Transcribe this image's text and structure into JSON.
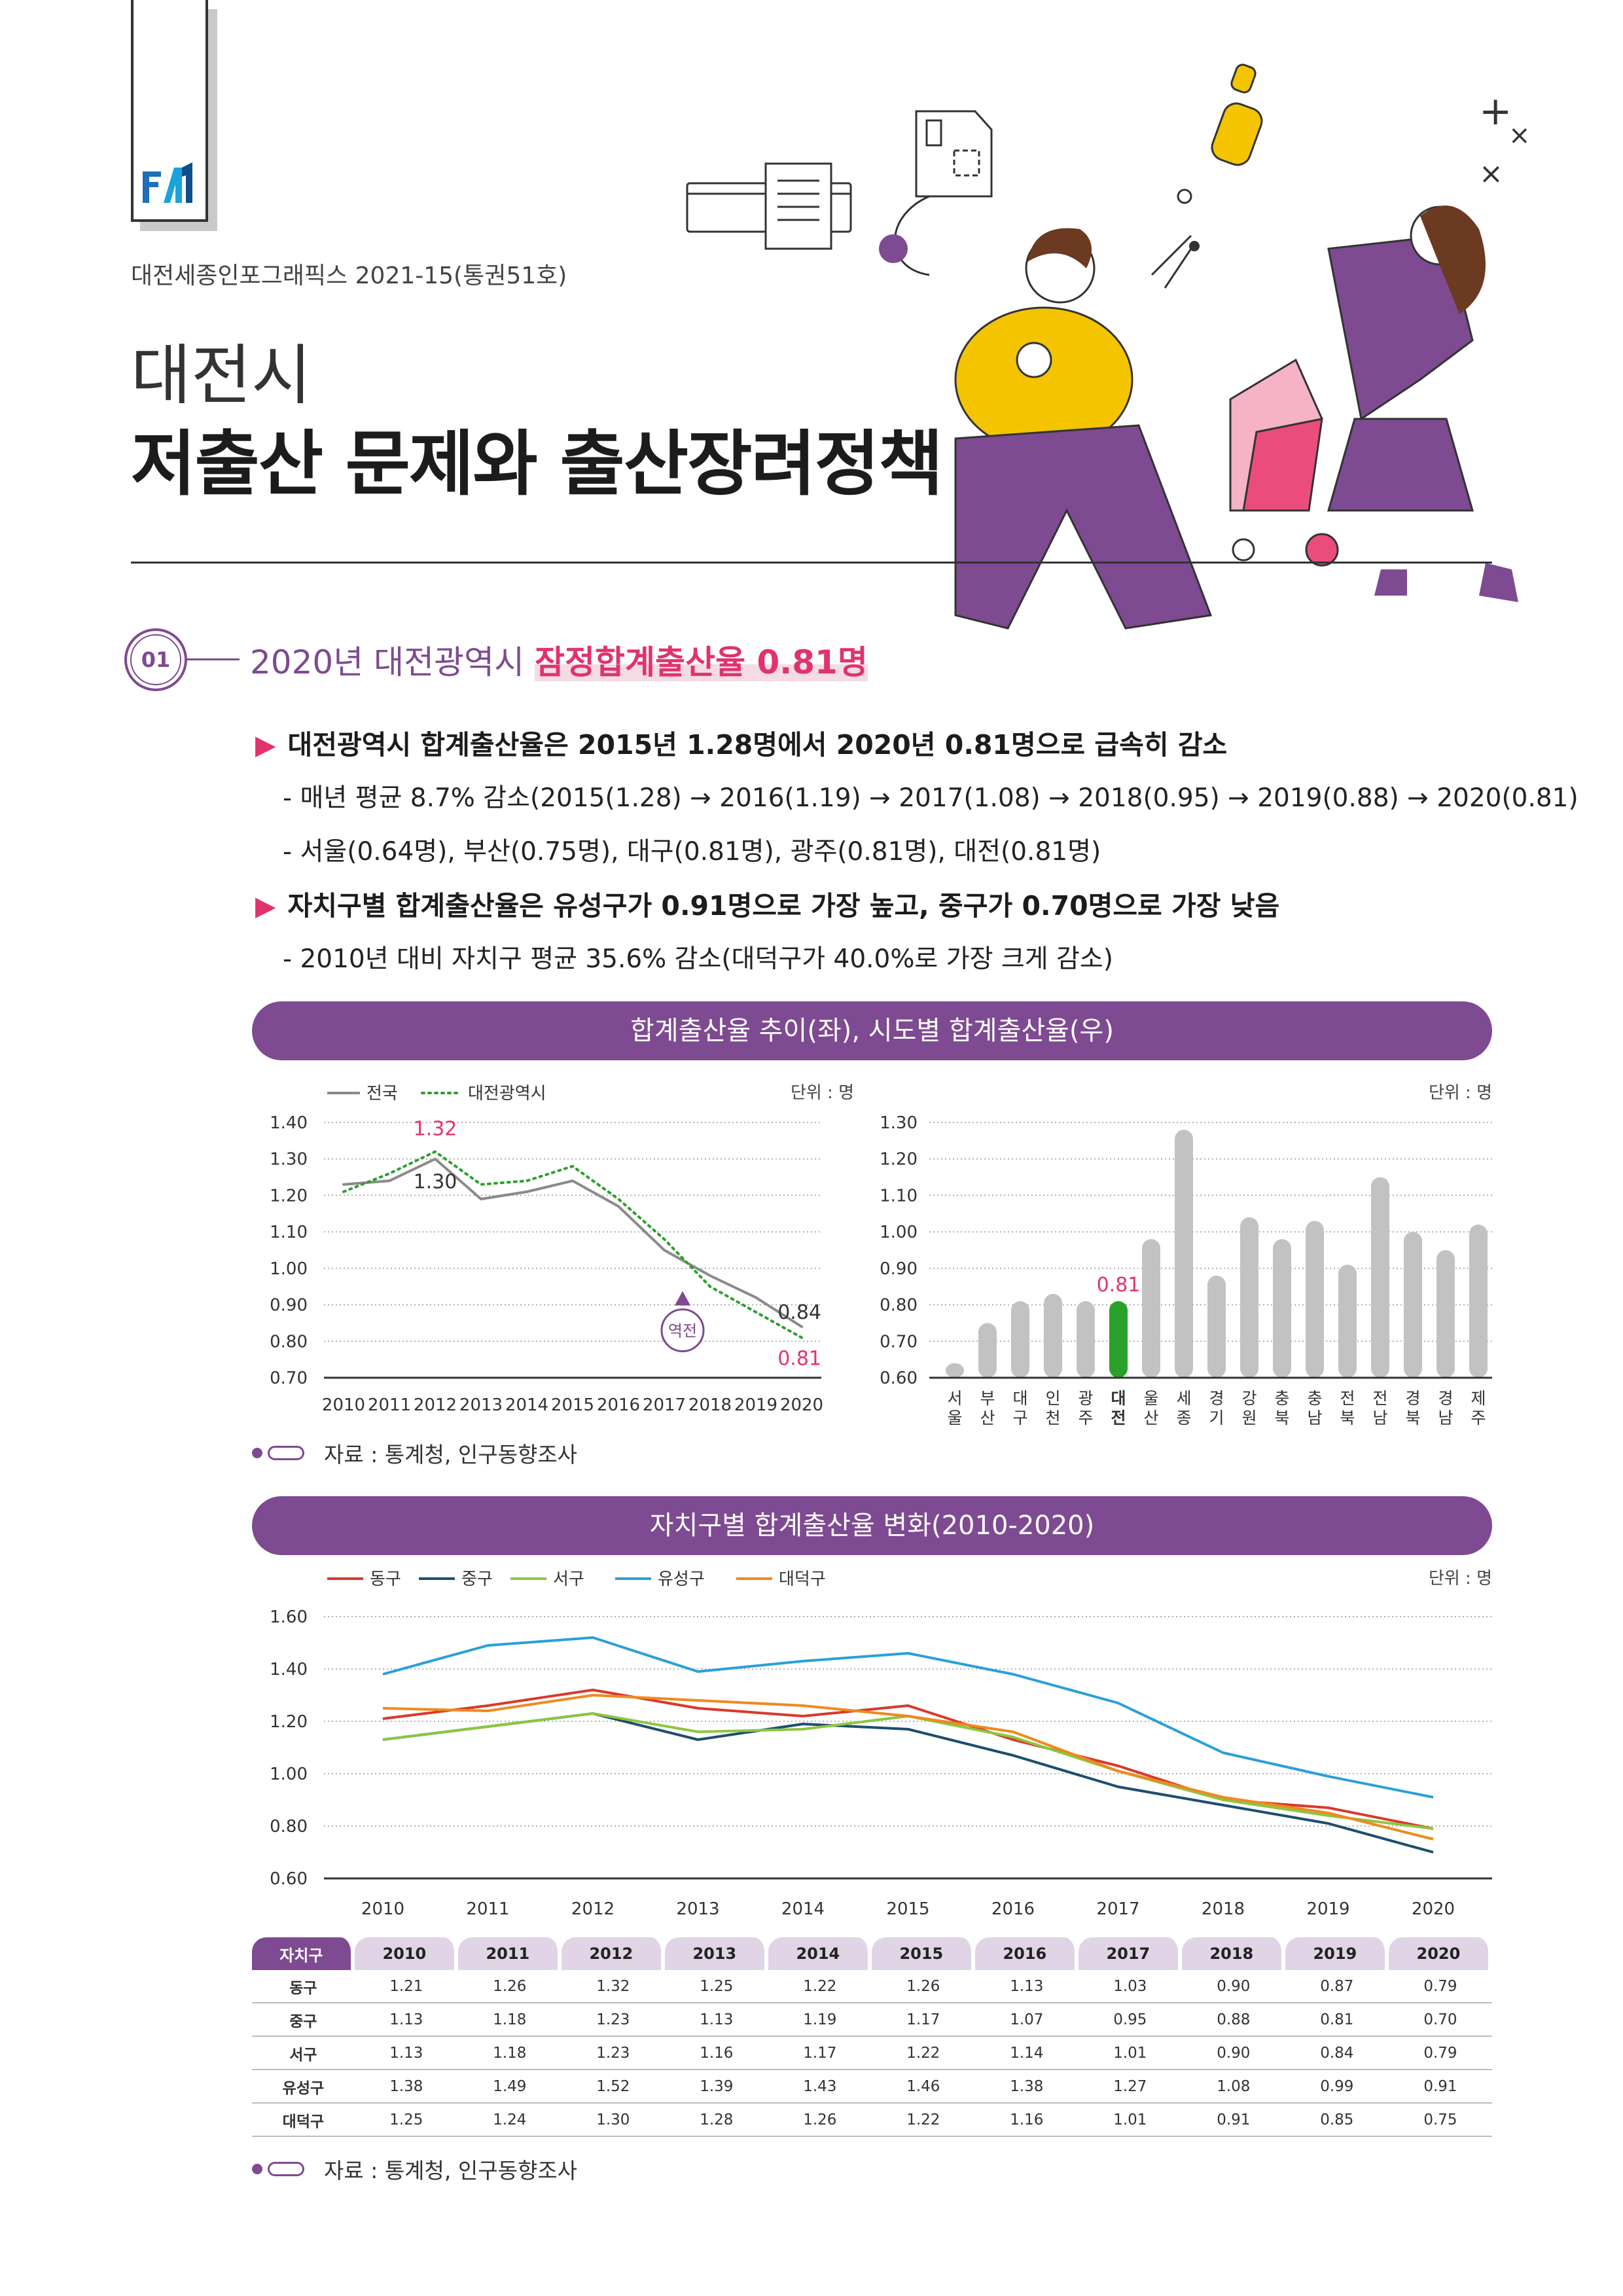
{
  "header": {
    "publication": "대전세종인포그래픽스 2021-15(통권51호)",
    "title_line1": "대전시",
    "title_line2": "저출산 문제와 출산장려정책"
  },
  "section": {
    "number": "01",
    "title_plain": "2020년 대전광역시 ",
    "title_highlight": "잠정합계출산율 0.81명"
  },
  "bullets": [
    {
      "text": "대전광역시 합계출산율은 2015년 1.28명에서 2020년 0.81명으로 급속히 감소",
      "subs": [
        "- 매년 평균 8.7% 감소(2015(1.28) → 2016(1.19) → 2017(1.08) → 2018(0.95) → 2019(0.88) → 2020(0.81)",
        "- 서울(0.64명), 부산(0.75명), 대구(0.81명), 광주(0.81명), 대전(0.81명)"
      ]
    },
    {
      "text": "자치구별 합계출산율은 유성구가 0.91명으로 가장 높고, 중구가 0.70명으로 가장 낮음",
      "subs": [
        "- 2010년 대비 자치구 평균 35.6% 감소(대덕구가 40.0%로 가장 크게 감소)"
      ]
    }
  ],
  "band1": "합계출산율 추이(좌), 시도별 합계출산율(우)",
  "band2": "자치구별 합계출산율 변화(2010-2020)",
  "source1": "자료 : 통계청, 인구동향조사",
  "source2": "자료 : 통계청, 인구동향조사",
  "colors": {
    "purple": "#7e4a91",
    "pink": "#e0336e",
    "national": "#8a8a8a",
    "daejeon_line": "#2aa12a",
    "bar": "#c2c2c2",
    "bar_highlight": "#2aa12a",
    "donggu": "#d9392b",
    "junggu": "#1d4e6e",
    "seogu": "#8cc63f",
    "yuseonggu": "#2aa0d8",
    "daedeokgu": "#ee8a1f"
  },
  "chart_data": [
    {
      "type": "line",
      "title": "합계출산율 추이",
      "unit": "단위 : 명",
      "x": [
        "2010",
        "2011",
        "2012",
        "2013",
        "2014",
        "2015",
        "2016",
        "2017",
        "2018",
        "2019",
        "2020"
      ],
      "ylim": [
        0.7,
        1.4
      ],
      "yticks": [
        "1.40",
        "1.30",
        "1.20",
        "1.10",
        "1.00",
        "0.90",
        "0.80",
        "0.70"
      ],
      "series": [
        {
          "name": "전국",
          "values": [
            1.23,
            1.24,
            1.3,
            1.19,
            1.21,
            1.24,
            1.17,
            1.05,
            0.98,
            0.92,
            0.84
          ]
        },
        {
          "name": "대전광역시",
          "values": [
            1.21,
            1.26,
            1.32,
            1.23,
            1.24,
            1.28,
            1.19,
            1.08,
            0.95,
            0.88,
            0.81
          ]
        }
      ],
      "annotations": {
        "peak_daejeon": "1.32",
        "peak_national": "1.30",
        "end_national": "0.84",
        "end_daejeon": "0.81",
        "reversal": "역전"
      },
      "legend": "top-left"
    },
    {
      "type": "bar",
      "title": "시도별 합계출산율",
      "unit": "단위 : 명",
      "categories": [
        "서울",
        "부산",
        "대구",
        "인천",
        "광주",
        "대전",
        "울산",
        "세종",
        "경기",
        "강원",
        "충북",
        "충남",
        "전북",
        "전남",
        "경북",
        "경남",
        "제주"
      ],
      "values": [
        0.64,
        0.75,
        0.81,
        0.83,
        0.81,
        0.81,
        0.98,
        1.28,
        0.88,
        1.04,
        0.98,
        1.03,
        0.91,
        1.15,
        1.0,
        0.95,
        1.02
      ],
      "highlight": "대전",
      "highlight_label": "0.81",
      "ylim": [
        0.6,
        1.3
      ],
      "yticks": [
        "1.30",
        "1.20",
        "1.10",
        "1.00",
        "0.90",
        "0.80",
        "0.70",
        "0.60"
      ]
    },
    {
      "type": "line",
      "title": "자치구별 합계출산율 변화(2010-2020)",
      "unit": "단위 : 명",
      "x": [
        "2010",
        "2011",
        "2012",
        "2013",
        "2014",
        "2015",
        "2016",
        "2017",
        "2018",
        "2019",
        "2020"
      ],
      "ylim": [
        0.6,
        1.6
      ],
      "yticks": [
        "1.60",
        "1.40",
        "1.20",
        "1.00",
        "0.80",
        "0.60"
      ],
      "series": [
        {
          "name": "동구",
          "values": [
            1.21,
            1.26,
            1.32,
            1.25,
            1.22,
            1.26,
            1.13,
            1.03,
            0.9,
            0.87,
            0.79
          ]
        },
        {
          "name": "중구",
          "values": [
            1.13,
            1.18,
            1.23,
            1.13,
            1.19,
            1.17,
            1.07,
            0.95,
            0.88,
            0.81,
            0.7
          ]
        },
        {
          "name": "서구",
          "values": [
            1.13,
            1.18,
            1.23,
            1.16,
            1.17,
            1.22,
            1.14,
            1.01,
            0.9,
            0.84,
            0.79
          ]
        },
        {
          "name": "유성구",
          "values": [
            1.38,
            1.49,
            1.52,
            1.39,
            1.43,
            1.46,
            1.38,
            1.27,
            1.08,
            0.99,
            0.91
          ]
        },
        {
          "name": "대덕구",
          "values": [
            1.25,
            1.24,
            1.3,
            1.28,
            1.26,
            1.22,
            1.16,
            1.01,
            0.91,
            0.85,
            0.75
          ]
        }
      ],
      "legend": "top-left"
    },
    {
      "type": "table",
      "headers": [
        "자치구",
        "2010",
        "2011",
        "2012",
        "2013",
        "2014",
        "2015",
        "2016",
        "2017",
        "2018",
        "2019",
        "2020"
      ],
      "rows": [
        [
          "동구",
          "1.21",
          "1.26",
          "1.32",
          "1.25",
          "1.22",
          "1.26",
          "1.13",
          "1.03",
          "0.90",
          "0.87",
          "0.79"
        ],
        [
          "중구",
          "1.13",
          "1.18",
          "1.23",
          "1.13",
          "1.19",
          "1.17",
          "1.07",
          "0.95",
          "0.88",
          "0.81",
          "0.70"
        ],
        [
          "서구",
          "1.13",
          "1.18",
          "1.23",
          "1.16",
          "1.17",
          "1.22",
          "1.14",
          "1.01",
          "0.90",
          "0.84",
          "0.79"
        ],
        [
          "유성구",
          "1.38",
          "1.49",
          "1.52",
          "1.39",
          "1.43",
          "1.46",
          "1.38",
          "1.27",
          "1.08",
          "0.99",
          "0.91"
        ],
        [
          "대덕구",
          "1.25",
          "1.24",
          "1.30",
          "1.28",
          "1.26",
          "1.22",
          "1.16",
          "1.01",
          "0.91",
          "0.85",
          "0.75"
        ]
      ]
    }
  ]
}
